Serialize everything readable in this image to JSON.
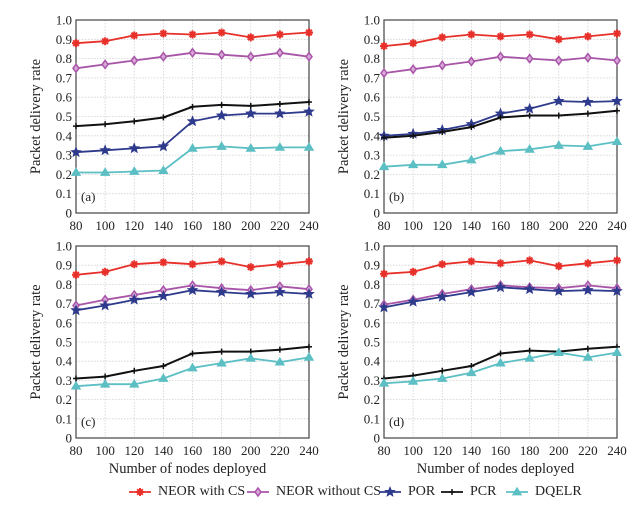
{
  "chart_data": [
    {
      "type": "line",
      "panel_label": "(a)",
      "xlabel": "",
      "ylabel": "Packet delivery rate",
      "x": [
        80,
        100,
        120,
        140,
        160,
        180,
        200,
        220,
        240
      ],
      "xlim": [
        80,
        240
      ],
      "ylim": [
        0,
        1.0
      ],
      "xticks": [
        "80",
        "100",
        "120",
        "140",
        "160",
        "180",
        "200",
        "220",
        "240"
      ],
      "yticks": [
        "0",
        "0.1",
        "0.2",
        "0.3",
        "0.4",
        "0.5",
        "0.6",
        "0.7",
        "0.8",
        "0.9",
        "1.0"
      ],
      "grid": true,
      "series": [
        {
          "name": "NEOR with CS",
          "values": [
            0.88,
            0.89,
            0.92,
            0.93,
            0.925,
            0.935,
            0.91,
            0.925,
            0.935
          ]
        },
        {
          "name": "NEOR without CS",
          "values": [
            0.75,
            0.77,
            0.79,
            0.81,
            0.83,
            0.82,
            0.81,
            0.83,
            0.81
          ]
        },
        {
          "name": "POR",
          "values": [
            0.315,
            0.325,
            0.335,
            0.345,
            0.475,
            0.505,
            0.515,
            0.515,
            0.525
          ]
        },
        {
          "name": "PCR",
          "values": [
            0.45,
            0.46,
            0.475,
            0.495,
            0.55,
            0.56,
            0.555,
            0.565,
            0.575
          ]
        },
        {
          "name": "DQELR",
          "values": [
            0.21,
            0.21,
            0.215,
            0.22,
            0.335,
            0.345,
            0.335,
            0.34,
            0.34
          ]
        }
      ]
    },
    {
      "type": "line",
      "panel_label": "(b)",
      "xlabel": "",
      "ylabel": "Packet delivery rate",
      "x": [
        80,
        100,
        120,
        140,
        160,
        180,
        200,
        220,
        240
      ],
      "xlim": [
        80,
        240
      ],
      "ylim": [
        0,
        1.0
      ],
      "xticks": [
        "80",
        "100",
        "120",
        "140",
        "160",
        "180",
        "200",
        "220",
        "240"
      ],
      "yticks": [
        "0",
        "0.1",
        "0.2",
        "0.3",
        "0.4",
        "0.5",
        "0.6",
        "0.7",
        "0.8",
        "0.9",
        "1.0"
      ],
      "grid": true,
      "series": [
        {
          "name": "NEOR with CS",
          "values": [
            0.865,
            0.88,
            0.91,
            0.925,
            0.915,
            0.925,
            0.9,
            0.915,
            0.93
          ]
        },
        {
          "name": "NEOR without CS",
          "values": [
            0.725,
            0.745,
            0.765,
            0.785,
            0.81,
            0.8,
            0.79,
            0.805,
            0.79
          ]
        },
        {
          "name": "POR",
          "values": [
            0.4,
            0.41,
            0.43,
            0.46,
            0.515,
            0.54,
            0.58,
            0.575,
            0.58
          ]
        },
        {
          "name": "PCR",
          "values": [
            0.39,
            0.4,
            0.42,
            0.445,
            0.495,
            0.505,
            0.505,
            0.515,
            0.53
          ]
        },
        {
          "name": "DQELR",
          "values": [
            0.24,
            0.25,
            0.25,
            0.275,
            0.32,
            0.33,
            0.35,
            0.345,
            0.37
          ]
        }
      ]
    },
    {
      "type": "line",
      "panel_label": "(c)",
      "xlabel": "Number of nodes deployed",
      "ylabel": "Packet delivery rate",
      "x": [
        80,
        100,
        120,
        140,
        160,
        180,
        200,
        220,
        240
      ],
      "xlim": [
        80,
        240
      ],
      "ylim": [
        0,
        1.0
      ],
      "xticks": [
        "80",
        "100",
        "120",
        "140",
        "160",
        "180",
        "200",
        "220",
        "240"
      ],
      "yticks": [
        "0",
        "0.1",
        "0.2",
        "0.3",
        "0.4",
        "0.5",
        "0.6",
        "0.7",
        "0.8",
        "0.9",
        "1.0"
      ],
      "grid": true,
      "series": [
        {
          "name": "NEOR with CS",
          "values": [
            0.85,
            0.865,
            0.905,
            0.915,
            0.905,
            0.92,
            0.89,
            0.905,
            0.92
          ]
        },
        {
          "name": "NEOR without CS",
          "values": [
            0.69,
            0.72,
            0.745,
            0.77,
            0.795,
            0.78,
            0.77,
            0.79,
            0.775
          ]
        },
        {
          "name": "POR",
          "values": [
            0.665,
            0.69,
            0.72,
            0.74,
            0.77,
            0.76,
            0.75,
            0.76,
            0.75
          ]
        },
        {
          "name": "PCR",
          "values": [
            0.31,
            0.32,
            0.35,
            0.375,
            0.44,
            0.45,
            0.45,
            0.46,
            0.475
          ]
        },
        {
          "name": "DQELR",
          "values": [
            0.27,
            0.28,
            0.28,
            0.31,
            0.365,
            0.39,
            0.415,
            0.395,
            0.42
          ]
        }
      ]
    },
    {
      "type": "line",
      "panel_label": "(d)",
      "xlabel": "Number of nodes deployed",
      "ylabel": "Packet delivery rate",
      "x": [
        80,
        100,
        120,
        140,
        160,
        180,
        200,
        220,
        240
      ],
      "xlim": [
        80,
        240
      ],
      "ylim": [
        0,
        1.0
      ],
      "xticks": [
        "80",
        "100",
        "120",
        "140",
        "160",
        "180",
        "200",
        "220",
        "240"
      ],
      "yticks": [
        "0",
        "0.1",
        "0.2",
        "0.3",
        "0.4",
        "0.5",
        "0.6",
        "0.7",
        "0.8",
        "0.9",
        "1.0"
      ],
      "grid": true,
      "series": [
        {
          "name": "NEOR with CS",
          "values": [
            0.855,
            0.865,
            0.905,
            0.92,
            0.91,
            0.925,
            0.895,
            0.91,
            0.925
          ]
        },
        {
          "name": "NEOR without CS",
          "values": [
            0.695,
            0.72,
            0.75,
            0.775,
            0.795,
            0.785,
            0.78,
            0.795,
            0.78
          ]
        },
        {
          "name": "POR",
          "values": [
            0.68,
            0.71,
            0.735,
            0.76,
            0.785,
            0.775,
            0.765,
            0.77,
            0.765
          ]
        },
        {
          "name": "PCR",
          "values": [
            0.31,
            0.325,
            0.35,
            0.375,
            0.44,
            0.455,
            0.45,
            0.465,
            0.475
          ]
        },
        {
          "name": "DQELR",
          "values": [
            0.285,
            0.295,
            0.31,
            0.34,
            0.39,
            0.415,
            0.445,
            0.42,
            0.445
          ]
        }
      ]
    }
  ],
  "legend": {
    "placement": "bottom-center",
    "items": [
      {
        "name": "NEOR with CS",
        "color": "#e8302a",
        "marker": "asterisk"
      },
      {
        "name": "NEOR without CS",
        "color": "#a855a8",
        "marker": "diamond"
      },
      {
        "name": "POR",
        "color": "#2e3a8c",
        "marker": "star"
      },
      {
        "name": "PCR",
        "color": "#111111",
        "marker": "plus"
      },
      {
        "name": "DQELR",
        "color": "#5bbfc4",
        "marker": "triangle"
      }
    ]
  }
}
